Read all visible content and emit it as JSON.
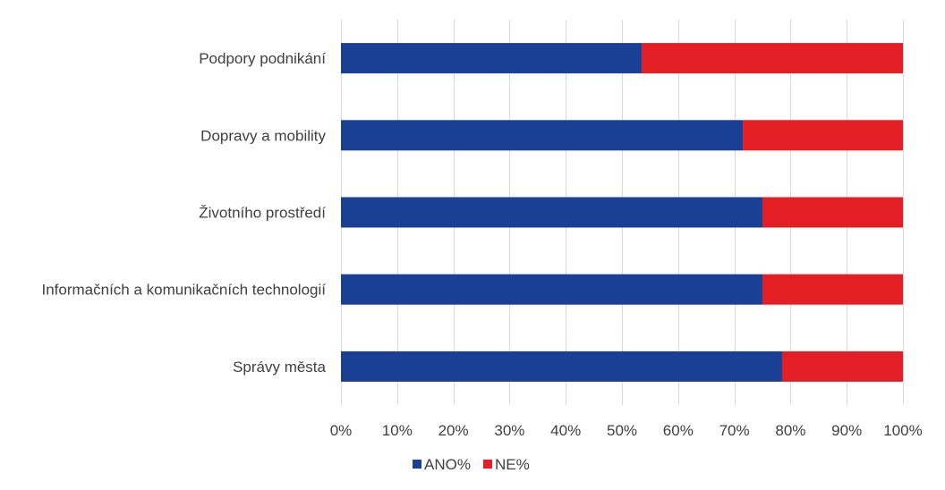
{
  "chart_data": {
    "type": "bar",
    "orientation": "horizontal",
    "stacked": "percent",
    "categories": [
      "Podpory podnikání",
      "Dopravy a mobility",
      "Životního prostředí",
      "Informačních a komunikačních technologií",
      "Správy města"
    ],
    "series": [
      {
        "name": "ANO%",
        "color": "#1a4096",
        "values": [
          53.5,
          71.5,
          75,
          75,
          78.5
        ]
      },
      {
        "name": "NE%",
        "color": "#e31e24",
        "values": [
          46.5,
          28.5,
          25,
          25,
          21.5
        ]
      }
    ],
    "x_ticks": [
      "0%",
      "10%",
      "20%",
      "30%",
      "40%",
      "50%",
      "60%",
      "70%",
      "80%",
      "90%",
      "100%"
    ],
    "xlim": [
      0,
      100
    ],
    "grid": "vertical",
    "legend": "bottom"
  }
}
